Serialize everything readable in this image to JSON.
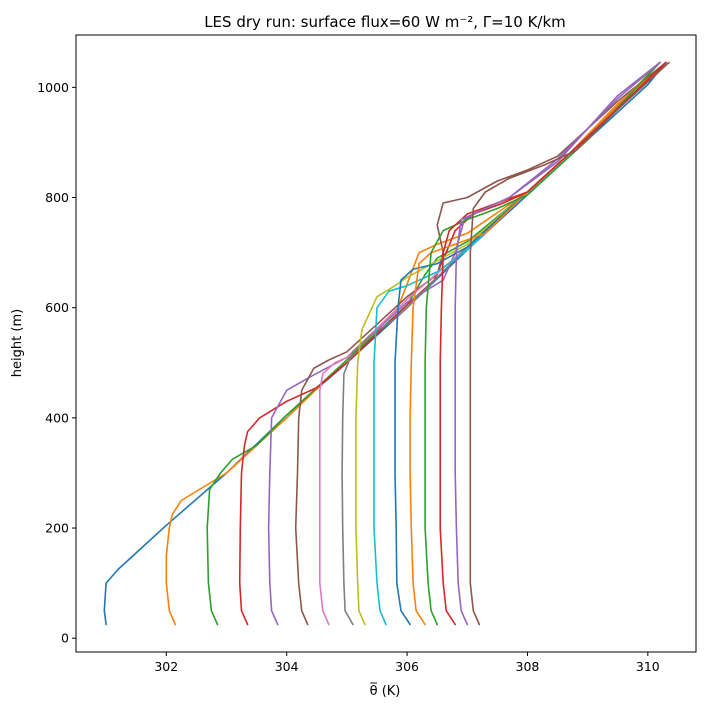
{
  "chart_data": {
    "type": "line",
    "title": "LES dry run:  surface flux=60 W m⁻², Γ=10 K/km",
    "xlabel": "θ̅ (K)",
    "ylabel": "height (m)",
    "xlim": [
      300.5,
      310.8
    ],
    "ylim": [
      -25,
      1095
    ],
    "xticks": [
      302,
      304,
      306,
      308,
      310
    ],
    "yticks": [
      0,
      200,
      400,
      600,
      800,
      1000
    ],
    "grid": false,
    "legend": "none",
    "series": [
      {
        "color": "#1f77b4",
        "points": [
          [
            301.0,
            25
          ],
          [
            300.97,
            50
          ],
          [
            301.0,
            100
          ],
          [
            301.2,
            125
          ],
          [
            302.0,
            205
          ],
          [
            303.0,
            300
          ],
          [
            304.0,
            405
          ],
          [
            305.0,
            500
          ],
          [
            306.0,
            600
          ],
          [
            307.0,
            705
          ],
          [
            308.0,
            805
          ],
          [
            309.0,
            905
          ],
          [
            310.0,
            1005
          ],
          [
            310.3,
            1045
          ]
        ]
      },
      {
        "color": "#ff7f0e",
        "points": [
          [
            302.15,
            25
          ],
          [
            302.05,
            50
          ],
          [
            302.0,
            100
          ],
          [
            302.0,
            150
          ],
          [
            302.05,
            200
          ],
          [
            302.1,
            225
          ],
          [
            302.25,
            250
          ],
          [
            303.0,
            300
          ],
          [
            304.0,
            400
          ],
          [
            305.0,
            505
          ],
          [
            305.85,
            600
          ],
          [
            306.2,
            700
          ],
          [
            306.5,
            715
          ],
          [
            307.0,
            735
          ],
          [
            308.0,
            810
          ],
          [
            308.7,
            880
          ],
          [
            309.5,
            970
          ],
          [
            310.3,
            1045
          ]
        ]
      },
      {
        "color": "#2ca02c",
        "points": [
          [
            302.85,
            25
          ],
          [
            302.75,
            50
          ],
          [
            302.7,
            100
          ],
          [
            302.68,
            200
          ],
          [
            302.72,
            270
          ],
          [
            302.9,
            300
          ],
          [
            303.1,
            325
          ],
          [
            303.5,
            350
          ],
          [
            304.0,
            405
          ],
          [
            305.0,
            505
          ],
          [
            306.0,
            605
          ],
          [
            306.3,
            660
          ],
          [
            306.5,
            690
          ],
          [
            307.0,
            720
          ],
          [
            308.0,
            810
          ],
          [
            309.0,
            910
          ],
          [
            310.2,
            1045
          ]
        ]
      },
      {
        "color": "#d62728",
        "points": [
          [
            303.35,
            25
          ],
          [
            303.25,
            50
          ],
          [
            303.22,
            100
          ],
          [
            303.23,
            200
          ],
          [
            303.25,
            300
          ],
          [
            303.3,
            350
          ],
          [
            303.35,
            375
          ],
          [
            303.55,
            400
          ],
          [
            304.0,
            430
          ],
          [
            304.5,
            455
          ],
          [
            305.0,
            500
          ],
          [
            306.0,
            605
          ],
          [
            306.45,
            650
          ],
          [
            306.65,
            700
          ],
          [
            306.8,
            740
          ],
          [
            307.1,
            770
          ],
          [
            307.6,
            790
          ],
          [
            308.0,
            810
          ],
          [
            309.0,
            910
          ],
          [
            310.3,
            1045
          ]
        ]
      },
      {
        "color": "#9467bd",
        "points": [
          [
            303.85,
            25
          ],
          [
            303.75,
            50
          ],
          [
            303.72,
            100
          ],
          [
            303.7,
            200
          ],
          [
            303.72,
            300
          ],
          [
            303.75,
            400
          ],
          [
            304.0,
            450
          ],
          [
            304.4,
            475
          ],
          [
            305.0,
            510
          ],
          [
            306.0,
            610
          ],
          [
            306.6,
            650
          ],
          [
            306.8,
            700
          ],
          [
            306.95,
            760
          ],
          [
            307.2,
            775
          ],
          [
            307.7,
            800
          ],
          [
            308.5,
            865
          ],
          [
            309.5,
            985
          ],
          [
            310.2,
            1045
          ]
        ]
      },
      {
        "color": "#8c564b",
        "points": [
          [
            304.35,
            25
          ],
          [
            304.25,
            50
          ],
          [
            304.2,
            100
          ],
          [
            304.15,
            200
          ],
          [
            304.18,
            300
          ],
          [
            304.2,
            400
          ],
          [
            304.25,
            450
          ],
          [
            304.45,
            490
          ],
          [
            304.7,
            505
          ],
          [
            305.0,
            520
          ],
          [
            306.0,
            620
          ],
          [
            306.5,
            660
          ],
          [
            306.6,
            700
          ],
          [
            306.5,
            750
          ],
          [
            306.6,
            790
          ],
          [
            307.0,
            800
          ],
          [
            307.5,
            830
          ],
          [
            308.0,
            850
          ],
          [
            308.5,
            875
          ],
          [
            309.0,
            925
          ],
          [
            309.5,
            975
          ],
          [
            310.3,
            1045
          ]
        ]
      },
      {
        "color": "#e377c2",
        "points": [
          [
            304.7,
            25
          ],
          [
            304.6,
            50
          ],
          [
            304.55,
            100
          ],
          [
            304.55,
            200
          ],
          [
            304.55,
            300
          ],
          [
            304.55,
            400
          ],
          [
            304.55,
            450
          ],
          [
            304.6,
            480
          ],
          [
            304.8,
            500
          ],
          [
            305.0,
            510
          ],
          [
            306.0,
            615
          ],
          [
            307.0,
            710
          ],
          [
            308.0,
            810
          ],
          [
            309.0,
            910
          ],
          [
            310.2,
            1045
          ]
        ]
      },
      {
        "color": "#7f7f7f",
        "points": [
          [
            305.1,
            25
          ],
          [
            304.97,
            50
          ],
          [
            304.95,
            100
          ],
          [
            304.93,
            200
          ],
          [
            304.92,
            300
          ],
          [
            304.93,
            400
          ],
          [
            304.95,
            480
          ],
          [
            305.1,
            520
          ],
          [
            305.4,
            550
          ],
          [
            305.8,
            580
          ],
          [
            306.0,
            600
          ],
          [
            307.0,
            710
          ],
          [
            308.0,
            810
          ],
          [
            309.0,
            910
          ],
          [
            310.2,
            1045
          ]
        ]
      },
      {
        "color": "#bcbd22",
        "points": [
          [
            305.3,
            25
          ],
          [
            305.2,
            50
          ],
          [
            305.18,
            100
          ],
          [
            305.15,
            200
          ],
          [
            305.15,
            300
          ],
          [
            305.15,
            400
          ],
          [
            305.18,
            500
          ],
          [
            305.25,
            560
          ],
          [
            305.5,
            620
          ],
          [
            305.8,
            640
          ],
          [
            306.0,
            655
          ],
          [
            307.0,
            715
          ],
          [
            308.0,
            810
          ],
          [
            309.0,
            910
          ],
          [
            310.2,
            1045
          ]
        ]
      },
      {
        "color": "#17becf",
        "points": [
          [
            305.65,
            25
          ],
          [
            305.55,
            50
          ],
          [
            305.5,
            100
          ],
          [
            305.45,
            200
          ],
          [
            305.45,
            300
          ],
          [
            305.45,
            400
          ],
          [
            305.45,
            500
          ],
          [
            305.5,
            600
          ],
          [
            305.7,
            630
          ],
          [
            306.0,
            640
          ],
          [
            306.5,
            665
          ],
          [
            307.0,
            705
          ],
          [
            308.0,
            810
          ],
          [
            309.0,
            910
          ],
          [
            310.2,
            1045
          ]
        ]
      },
      {
        "color": "#1f77b4",
        "points": [
          [
            306.05,
            25
          ],
          [
            305.9,
            50
          ],
          [
            305.83,
            100
          ],
          [
            305.82,
            200
          ],
          [
            305.8,
            300
          ],
          [
            305.8,
            400
          ],
          [
            305.8,
            500
          ],
          [
            305.85,
            600
          ],
          [
            305.9,
            650
          ],
          [
            306.1,
            670
          ],
          [
            306.5,
            680
          ],
          [
            307.0,
            710
          ],
          [
            308.0,
            810
          ],
          [
            309.0,
            910
          ],
          [
            310.2,
            1045
          ]
        ]
      },
      {
        "color": "#ff7f0e",
        "points": [
          [
            306.3,
            25
          ],
          [
            306.15,
            50
          ],
          [
            306.1,
            100
          ],
          [
            306.07,
            200
          ],
          [
            306.05,
            300
          ],
          [
            306.05,
            400
          ],
          [
            306.07,
            500
          ],
          [
            306.1,
            600
          ],
          [
            306.2,
            680
          ],
          [
            306.4,
            700
          ],
          [
            306.8,
            715
          ],
          [
            307.3,
            735
          ],
          [
            308.0,
            810
          ],
          [
            309.0,
            910
          ],
          [
            310.2,
            1045
          ]
        ]
      },
      {
        "color": "#2ca02c",
        "points": [
          [
            306.5,
            25
          ],
          [
            306.4,
            50
          ],
          [
            306.35,
            100
          ],
          [
            306.3,
            200
          ],
          [
            306.3,
            300
          ],
          [
            306.3,
            400
          ],
          [
            306.3,
            500
          ],
          [
            306.32,
            600
          ],
          [
            306.4,
            700
          ],
          [
            306.6,
            740
          ],
          [
            307.0,
            760
          ],
          [
            307.5,
            780
          ],
          [
            308.0,
            805
          ],
          [
            309.0,
            905
          ],
          [
            310.2,
            1045
          ]
        ]
      },
      {
        "color": "#d62728",
        "points": [
          [
            306.8,
            25
          ],
          [
            306.65,
            50
          ],
          [
            306.6,
            100
          ],
          [
            306.55,
            200
          ],
          [
            306.55,
            300
          ],
          [
            306.55,
            400
          ],
          [
            306.55,
            500
          ],
          [
            306.57,
            600
          ],
          [
            306.6,
            700
          ],
          [
            306.7,
            740
          ],
          [
            307.0,
            770
          ],
          [
            307.5,
            790
          ],
          [
            308.0,
            810
          ],
          [
            309.0,
            910
          ],
          [
            310.3,
            1045
          ]
        ]
      },
      {
        "color": "#9467bd",
        "points": [
          [
            307.0,
            25
          ],
          [
            306.9,
            50
          ],
          [
            306.85,
            100
          ],
          [
            306.82,
            200
          ],
          [
            306.8,
            300
          ],
          [
            306.8,
            400
          ],
          [
            306.8,
            500
          ],
          [
            306.8,
            600
          ],
          [
            306.82,
            700
          ],
          [
            306.9,
            760
          ],
          [
            307.2,
            775
          ],
          [
            307.7,
            800
          ],
          [
            308.5,
            870
          ],
          [
            309.5,
            980
          ],
          [
            310.2,
            1045
          ]
        ]
      },
      {
        "color": "#8c564b",
        "points": [
          [
            307.2,
            25
          ],
          [
            307.1,
            50
          ],
          [
            307.05,
            100
          ],
          [
            307.05,
            200
          ],
          [
            307.05,
            300
          ],
          [
            307.05,
            400
          ],
          [
            307.05,
            500
          ],
          [
            307.05,
            600
          ],
          [
            307.05,
            700
          ],
          [
            307.1,
            780
          ],
          [
            307.3,
            810
          ],
          [
            307.7,
            835
          ],
          [
            308.3,
            860
          ],
          [
            308.8,
            885
          ],
          [
            309.5,
            960
          ],
          [
            310.35,
            1045
          ]
        ]
      }
    ]
  }
}
